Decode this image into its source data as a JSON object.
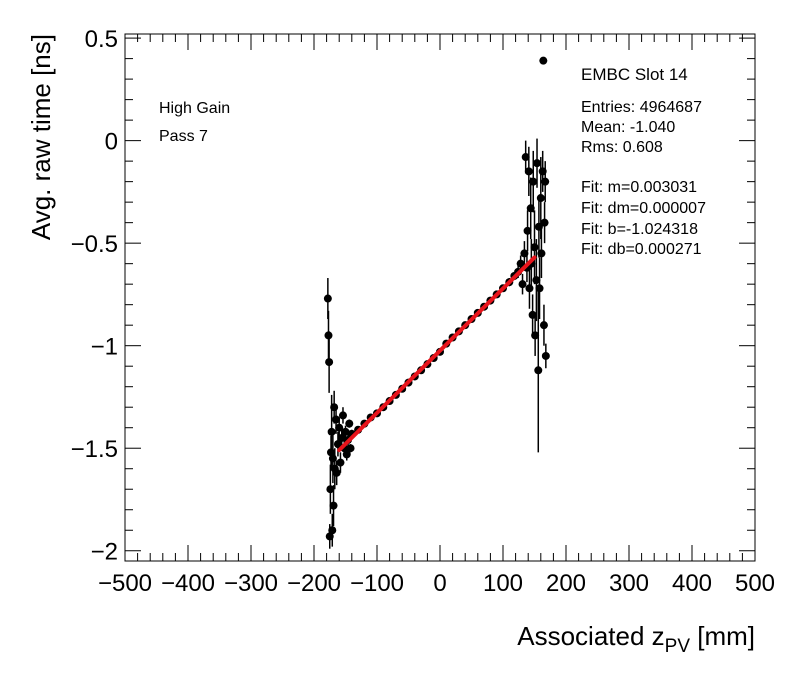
{
  "chart_data": {
    "type": "scatter",
    "xlabel": {
      "main": "Associated z",
      "sub": "PV",
      "unit": " [mm]"
    },
    "ylabel": "Avg. raw time [ns]",
    "xlim": [
      -500,
      500
    ],
    "ylim": [
      -2.05,
      0.52
    ],
    "x_ticks": [
      -500,
      -400,
      -300,
      -200,
      -100,
      0,
      100,
      200,
      300,
      400,
      500
    ],
    "x_tick_labels": [
      "−500",
      "−400",
      "−300",
      "−200",
      "−100",
      "0",
      "100",
      "200",
      "300",
      "400",
      "500"
    ],
    "y_ticks": [
      -2,
      -1.5,
      -1,
      -0.5,
      0,
      0.5
    ],
    "y_tick_labels": [
      "−2",
      "−1.5",
      "−1",
      "−0.5",
      "0",
      "0.5"
    ],
    "annotations": [
      "High Gain",
      "Pass 7"
    ],
    "stats_box": {
      "title": "EMBC Slot 14",
      "lines": [
        "Entries: 4964687",
        "Mean: -1.040",
        "Rms: 0.608",
        "",
        "Fit: m=0.003031",
        "Fit: dm=0.000007",
        "Fit: b=-1.024318",
        "Fit: db=0.000271"
      ]
    },
    "fit": {
      "m": 0.003031,
      "b": -1.024318,
      "x_range": [
        -160,
        150
      ],
      "color": "#e8141b"
    },
    "series": [
      {
        "name": "data",
        "color": "#000000",
        "points": [
          {
            "x": -178,
            "y": -0.77,
            "err": 0.1
          },
          {
            "x": -177,
            "y": -0.95,
            "err": 0.12
          },
          {
            "x": -176,
            "y": -1.08,
            "err": 0.15
          },
          {
            "x": -175,
            "y": -1.93,
            "err": 0.06
          },
          {
            "x": -174,
            "y": -1.7,
            "err": 0.12
          },
          {
            "x": -173,
            "y": -1.52,
            "err": 0.08
          },
          {
            "x": -172,
            "y": -1.42,
            "err": 0.18
          },
          {
            "x": -171,
            "y": -1.9,
            "err": 0.08
          },
          {
            "x": -170,
            "y": -1.55,
            "err": 0.12
          },
          {
            "x": -169,
            "y": -1.78,
            "err": 0.1
          },
          {
            "x": -168,
            "y": -1.3,
            "err": 0.08
          },
          {
            "x": -167,
            "y": -1.6,
            "err": 0.1
          },
          {
            "x": -165,
            "y": -1.36,
            "err": 0.07
          },
          {
            "x": -164,
            "y": -1.62,
            "err": 0.06
          },
          {
            "x": -162,
            "y": -1.48,
            "err": 0.06
          },
          {
            "x": -160,
            "y": -1.4,
            "err": 0.05
          },
          {
            "x": -158,
            "y": -1.57,
            "err": 0.05
          },
          {
            "x": -156,
            "y": -1.45,
            "err": 0.04
          },
          {
            "x": -154,
            "y": -1.34,
            "err": 0.04
          },
          {
            "x": -152,
            "y": -1.5,
            "err": 0.04
          },
          {
            "x": -150,
            "y": -1.42,
            "err": 0.03
          },
          {
            "x": -148,
            "y": -1.53,
            "err": 0.03
          },
          {
            "x": -146,
            "y": -1.46,
            "err": 0.03
          },
          {
            "x": -144,
            "y": -1.38,
            "err": 0.02
          },
          {
            "x": -142,
            "y": -1.5,
            "err": 0.02
          },
          {
            "x": -140,
            "y": -1.43,
            "err": 0.02
          },
          {
            "x": -130,
            "y": -1.41,
            "err": 0.01
          },
          {
            "x": -120,
            "y": -1.38,
            "err": 0.01
          },
          {
            "x": -110,
            "y": -1.35,
            "err": 0.01
          },
          {
            "x": -100,
            "y": -1.33,
            "err": 0.01
          },
          {
            "x": -90,
            "y": -1.3,
            "err": 0.01
          },
          {
            "x": -80,
            "y": -1.27,
            "err": 0.01
          },
          {
            "x": -70,
            "y": -1.24,
            "err": 0.01
          },
          {
            "x": -60,
            "y": -1.21,
            "err": 0.01
          },
          {
            "x": -50,
            "y": -1.18,
            "err": 0.01
          },
          {
            "x": -40,
            "y": -1.15,
            "err": 0.01
          },
          {
            "x": -30,
            "y": -1.12,
            "err": 0.01
          },
          {
            "x": -20,
            "y": -1.09,
            "err": 0.01
          },
          {
            "x": -10,
            "y": -1.06,
            "err": 0.01
          },
          {
            "x": 0,
            "y": -1.03,
            "err": 0.01
          },
          {
            "x": 10,
            "y": -0.99,
            "err": 0.01
          },
          {
            "x": 20,
            "y": -0.96,
            "err": 0.01
          },
          {
            "x": 30,
            "y": -0.93,
            "err": 0.01
          },
          {
            "x": 40,
            "y": -0.9,
            "err": 0.01
          },
          {
            "x": 50,
            "y": -0.87,
            "err": 0.01
          },
          {
            "x": 60,
            "y": -0.84,
            "err": 0.01
          },
          {
            "x": 70,
            "y": -0.81,
            "err": 0.01
          },
          {
            "x": 80,
            "y": -0.78,
            "err": 0.01
          },
          {
            "x": 90,
            "y": -0.75,
            "err": 0.01
          },
          {
            "x": 100,
            "y": -0.72,
            "err": 0.01
          },
          {
            "x": 110,
            "y": -0.69,
            "err": 0.02
          },
          {
            "x": 118,
            "y": -0.66,
            "err": 0.02
          },
          {
            "x": 124,
            "y": -0.64,
            "err": 0.03
          },
          {
            "x": 128,
            "y": -0.6,
            "err": 0.04
          },
          {
            "x": 131,
            "y": -0.7,
            "err": 0.05
          },
          {
            "x": 134,
            "y": -0.55,
            "err": 0.06
          },
          {
            "x": 136,
            "y": -0.08,
            "err": 0.08
          },
          {
            "x": 138,
            "y": -0.62,
            "err": 0.07
          },
          {
            "x": 139,
            "y": -0.44,
            "err": 0.1
          },
          {
            "x": 141,
            "y": -0.15,
            "err": 0.12
          },
          {
            "x": 142,
            "y": -0.72,
            "err": 0.1
          },
          {
            "x": 144,
            "y": -0.33,
            "err": 0.15
          },
          {
            "x": 145,
            "y": -0.6,
            "err": 0.12
          },
          {
            "x": 147,
            "y": -0.85,
            "err": 0.1
          },
          {
            "x": 148,
            "y": -0.2,
            "err": 0.15
          },
          {
            "x": 150,
            "y": -0.52,
            "err": 0.18
          },
          {
            "x": 151,
            "y": -0.95,
            "err": 0.1
          },
          {
            "x": 153,
            "y": -0.68,
            "err": 0.2
          },
          {
            "x": 154,
            "y": -0.11,
            "err": 0.12
          },
          {
            "x": 156,
            "y": -1.12,
            "err": 0.4
          },
          {
            "x": 157,
            "y": -0.42,
            "err": 0.15
          },
          {
            "x": 158,
            "y": -0.72,
            "err": 0.15
          },
          {
            "x": 160,
            "y": -0.28,
            "err": 0.2
          },
          {
            "x": 161,
            "y": -0.55,
            "err": 0.12
          },
          {
            "x": 163,
            "y": -0.15,
            "err": 0.1
          },
          {
            "x": 164,
            "y": 0.39,
            "err": 0.01
          },
          {
            "x": 165,
            "y": -0.9,
            "err": 0.1
          },
          {
            "x": 166,
            "y": -0.4,
            "err": 0.1
          },
          {
            "x": 167,
            "y": -0.2,
            "err": 0.1
          },
          {
            "x": 168,
            "y": -1.05,
            "err": 0.06
          }
        ]
      }
    ]
  }
}
